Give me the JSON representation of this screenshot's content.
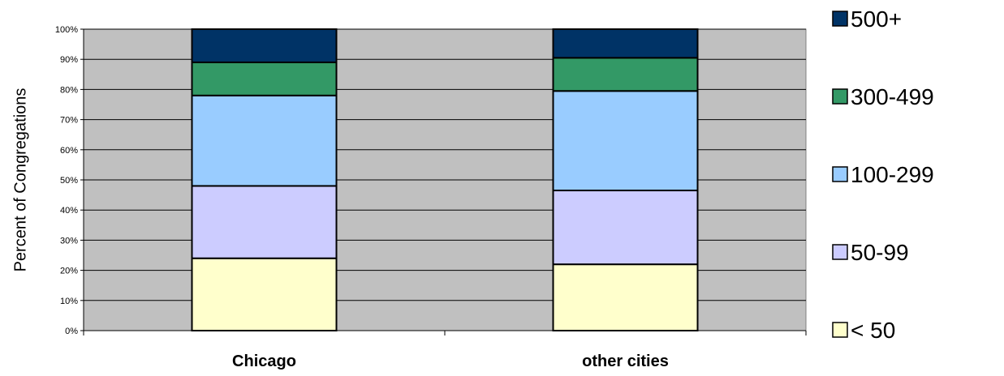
{
  "chart_data": {
    "type": "bar",
    "stacked": true,
    "percent": true,
    "categories": [
      "Chicago",
      "other cities"
    ],
    "series": [
      {
        "name": "< 50",
        "color": "#FFFFCC",
        "values": [
          24,
          22
        ]
      },
      {
        "name": "50-99",
        "color": "#CCCCFF",
        "values": [
          24,
          24.5
        ]
      },
      {
        "name": "100-299",
        "color": "#99CCFF",
        "values": [
          30,
          33
        ]
      },
      {
        "name": "300-499",
        "color": "#339966",
        "values": [
          11,
          11
        ]
      },
      {
        "name": "500+",
        "color": "#003366",
        "values": [
          11,
          9.5
        ]
      }
    ],
    "ylabel": "Percent of Congregations",
    "xlabel": "",
    "ylim": [
      0,
      100
    ],
    "yticks": [
      "0%",
      "10%",
      "20%",
      "30%",
      "40%",
      "50%",
      "60%",
      "70%",
      "80%",
      "90%",
      "100%"
    ],
    "grid": true,
    "plot_background": "#C0C0C0",
    "legend_position": "right"
  }
}
